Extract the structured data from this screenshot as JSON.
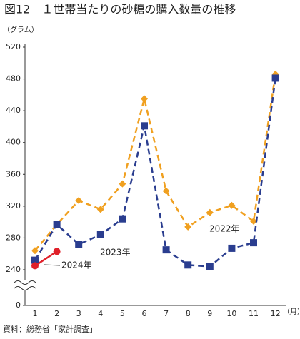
{
  "chart_data": {
    "type": "line",
    "title": "図12　１世帯当たりの砂糖の購入数量の推移",
    "y_label": "（グラム）",
    "x_label": "（月）",
    "source": "資料：総務省「家計調査」",
    "categories": [
      1,
      2,
      3,
      4,
      5,
      6,
      7,
      8,
      9,
      10,
      11,
      12
    ],
    "ylim": [
      240,
      520
    ],
    "yticks": [
      0,
      240,
      280,
      320,
      360,
      400,
      440,
      480,
      520
    ],
    "axis_break": true,
    "grid": false,
    "series": [
      {
        "name": "2022年",
        "color": "#f0a020",
        "marker": "diamond",
        "dash": true,
        "values": [
          264,
          297,
          327,
          316,
          348,
          455,
          339,
          294,
          312,
          321,
          301,
          486
        ]
      },
      {
        "name": "2023年",
        "color": "#2a3d8f",
        "marker": "square",
        "dash": true,
        "values": [
          252,
          297,
          272,
          284,
          304,
          421,
          265,
          246,
          244,
          267,
          274,
          481
        ]
      },
      {
        "name": "2024年",
        "color": "#e0202a",
        "marker": "circle",
        "dash": false,
        "values": [
          245,
          263,
          null,
          null,
          null,
          null,
          null,
          null,
          null,
          null,
          null,
          null
        ]
      }
    ]
  }
}
